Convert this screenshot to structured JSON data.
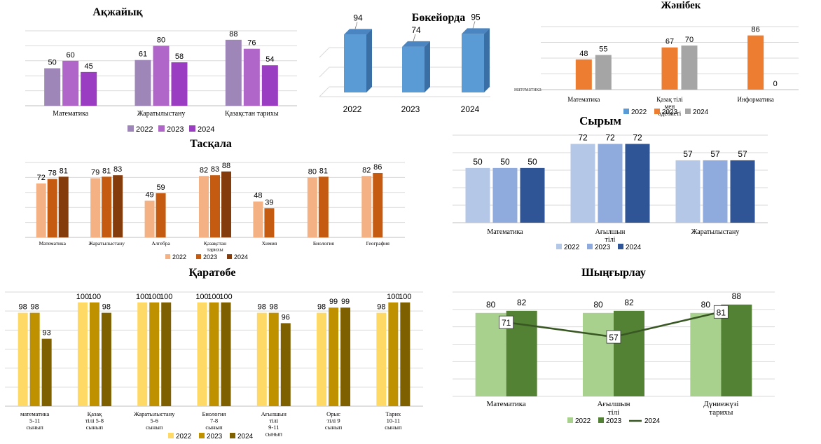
{
  "chart_data": [
    {
      "id": "akzhaiyk",
      "type": "bar",
      "title": "Ақжайық",
      "categories": [
        "Математика",
        "Жаратылыстану",
        "Қазақстан тарихы"
      ],
      "series": [
        {
          "name": "2022",
          "values": [
            50,
            61,
            88
          ]
        },
        {
          "name": "2023",
          "values": [
            60,
            80,
            76
          ]
        },
        {
          "name": "2024",
          "values": [
            45,
            58,
            54
          ]
        }
      ],
      "colors": [
        "#9e86b8",
        "#b065c8",
        "#9a3dc2"
      ],
      "ylim": [
        0,
        100
      ],
      "legend": "bottom"
    },
    {
      "id": "bokeiorda",
      "type": "bar",
      "title": "Бөкейорда",
      "categories": [
        "2022",
        "2023",
        "2024"
      ],
      "series": [
        {
          "name": "",
          "values": [
            94,
            74,
            95
          ]
        }
      ],
      "colors": [
        "#5b9bd5"
      ],
      "ylim": [
        0,
        110
      ]
    },
    {
      "id": "zhanibek",
      "type": "bar",
      "title": "Жәнібек",
      "categories": [
        "Математика",
        "Қазақ тілі мен әдебиеті",
        "Информатика"
      ],
      "series": [
        {
          "name": "2022",
          "values": [
            null,
            null,
            null
          ]
        },
        {
          "name": "2023",
          "values": [
            48,
            67,
            86
          ]
        },
        {
          "name": "2024",
          "values": [
            55,
            70,
            0
          ]
        }
      ],
      "colors": [
        "#5b9bd5",
        "#ed7d31",
        "#a5a5a5"
      ],
      "ylim": [
        0,
        100
      ],
      "axis_note": "математика",
      "legend": "bottom"
    },
    {
      "id": "syrym",
      "type": "bar",
      "title": "Сырым",
      "categories": [
        "Математика",
        "Ағылшын тілі",
        "Жаратылыстану"
      ],
      "series": [
        {
          "name": "2022",
          "values": [
            50,
            72,
            57
          ]
        },
        {
          "name": "2023",
          "values": [
            50,
            72,
            57
          ]
        },
        {
          "name": "2024",
          "values": [
            50,
            72,
            57
          ]
        }
      ],
      "colors": [
        "#b4c7e7",
        "#8faadc",
        "#2f5597"
      ],
      "ylim": [
        0,
        80
      ],
      "legend": "bottom"
    },
    {
      "id": "taskala",
      "type": "bar",
      "title": "Тасқала",
      "categories": [
        "Математика",
        "Жаратылыстану",
        "Алгебра",
        "Қазақстан тарихы",
        "Химия",
        "Биология",
        "География"
      ],
      "series": [
        {
          "name": "2022",
          "values": [
            72,
            79,
            49,
            82,
            48,
            80,
            82
          ]
        },
        {
          "name": "2023",
          "values": [
            78,
            81,
            59,
            83,
            39,
            81,
            86
          ]
        },
        {
          "name": "2024",
          "values": [
            81,
            83,
            null,
            88,
            null,
            null,
            null
          ]
        }
      ],
      "colors": [
        "#f4b183",
        "#c55a11",
        "#843c0c"
      ],
      "ylim": [
        0,
        100
      ],
      "legend": "bottom"
    },
    {
      "id": "karatobe",
      "type": "bar",
      "title": "Қаратөбе",
      "categories": [
        "математика 5-11 сынып",
        "Қазақ тілі 5-8 сынып",
        "Жаратылыстану 5-6 сынып",
        "Биология 7-8 сынып",
        "Ағылшын тілі 9-11 сынып",
        "Орыс тілі 9 сынып",
        "Тарих 10-11 сынып"
      ],
      "series": [
        {
          "name": "2022",
          "values": [
            98,
            100,
            100,
            100,
            98,
            98,
            98
          ]
        },
        {
          "name": "2023",
          "values": [
            98,
            100,
            100,
            100,
            98,
            99,
            100
          ]
        },
        {
          "name": "2024",
          "values": [
            93,
            98,
            100,
            100,
            96,
            99,
            100
          ]
        }
      ],
      "colors": [
        "#ffd966",
        "#bf9000",
        "#7f6000"
      ],
      "ylim": [
        80,
        102
      ],
      "legend": "bottom"
    },
    {
      "id": "shyngyrlau",
      "type": "bar+line",
      "title": "Шыңғырлау",
      "categories": [
        "Математика",
        "Ағылшын тілі",
        "Дүниежүзі тарихы"
      ],
      "series": [
        {
          "name": "2022",
          "kind": "bar",
          "values": [
            80,
            80,
            80
          ]
        },
        {
          "name": "2023",
          "kind": "bar",
          "values": [
            82,
            82,
            88
          ]
        },
        {
          "name": "2024",
          "kind": "line",
          "values": [
            71,
            57,
            81
          ]
        }
      ],
      "colors": [
        "#a9d18e",
        "#548235",
        "#385723"
      ],
      "ylim": [
        0,
        100
      ],
      "legend": "bottom"
    }
  ]
}
